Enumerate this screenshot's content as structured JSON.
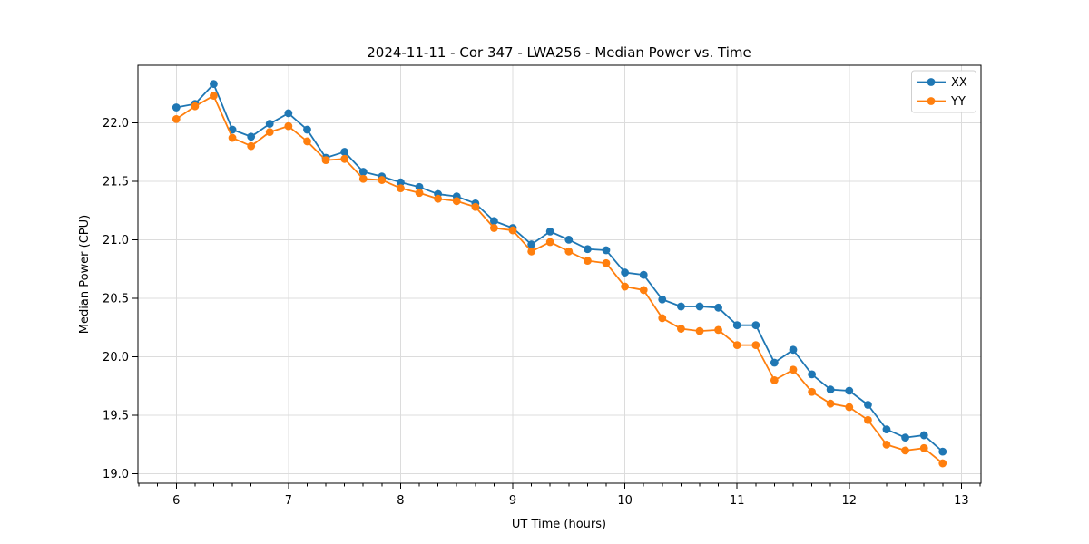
{
  "figure": {
    "title": "2024-11-11 - Cor 347 - LWA256 - Median Power vs. Time",
    "xlabel": "UT Time (hours)",
    "ylabel": "Median Power (CPU)"
  },
  "chart_data": {
    "type": "line",
    "title": "2024-11-11 - Cor 347 - LWA256 - Median Power vs. Time",
    "xlabel": "UT Time (hours)",
    "ylabel": "Median Power (CPU)",
    "grid": true,
    "grid_color": "#dcdcdc",
    "background": "#ffffff",
    "legend_position": "upper right",
    "marker": "circle",
    "xlim": [
      5.658,
      13.175
    ],
    "ylim": [
      18.92,
      22.49
    ],
    "xticks": [
      6,
      7,
      8,
      9,
      10,
      11,
      12,
      13
    ],
    "x_minor_tick_step": 0.1667,
    "yticks": [
      19.0,
      19.5,
      20.0,
      20.5,
      21.0,
      21.5,
      22.0
    ],
    "x": [
      6.0,
      6.167,
      6.333,
      6.5,
      6.667,
      6.833,
      7.0,
      7.167,
      7.333,
      7.5,
      7.667,
      7.833,
      8.0,
      8.167,
      8.333,
      8.5,
      8.667,
      8.833,
      9.0,
      9.167,
      9.333,
      9.5,
      9.667,
      9.833,
      10.0,
      10.167,
      10.333,
      10.5,
      10.667,
      10.833,
      11.0,
      11.167,
      11.333,
      11.5,
      11.667,
      11.833,
      12.0,
      12.167,
      12.333,
      12.5,
      12.667,
      12.833
    ],
    "series": [
      {
        "name": "XX",
        "color": "#1f77b4",
        "values": [
          22.13,
          22.16,
          22.33,
          21.94,
          21.88,
          21.99,
          22.08,
          21.94,
          21.7,
          21.75,
          21.58,
          21.54,
          21.49,
          21.45,
          21.39,
          21.37,
          21.31,
          21.16,
          21.1,
          20.96,
          21.07,
          21.0,
          20.92,
          20.91,
          20.72,
          20.7,
          20.49,
          20.43,
          20.43,
          20.42,
          20.27,
          20.27,
          19.95,
          20.06,
          19.85,
          19.72,
          19.71,
          19.59,
          19.38,
          19.31,
          19.33,
          19.19
        ]
      },
      {
        "name": "YY",
        "color": "#ff7f0e",
        "values": [
          22.03,
          22.14,
          22.23,
          21.87,
          21.8,
          21.92,
          21.97,
          21.84,
          21.68,
          21.69,
          21.52,
          21.51,
          21.44,
          21.4,
          21.35,
          21.33,
          21.28,
          21.1,
          21.08,
          20.9,
          20.98,
          20.9,
          20.82,
          20.8,
          20.6,
          20.57,
          20.33,
          20.24,
          20.22,
          20.23,
          20.1,
          20.1,
          19.8,
          19.89,
          19.7,
          19.6,
          19.57,
          19.46,
          19.25,
          19.2,
          19.22,
          19.09
        ]
      }
    ]
  }
}
